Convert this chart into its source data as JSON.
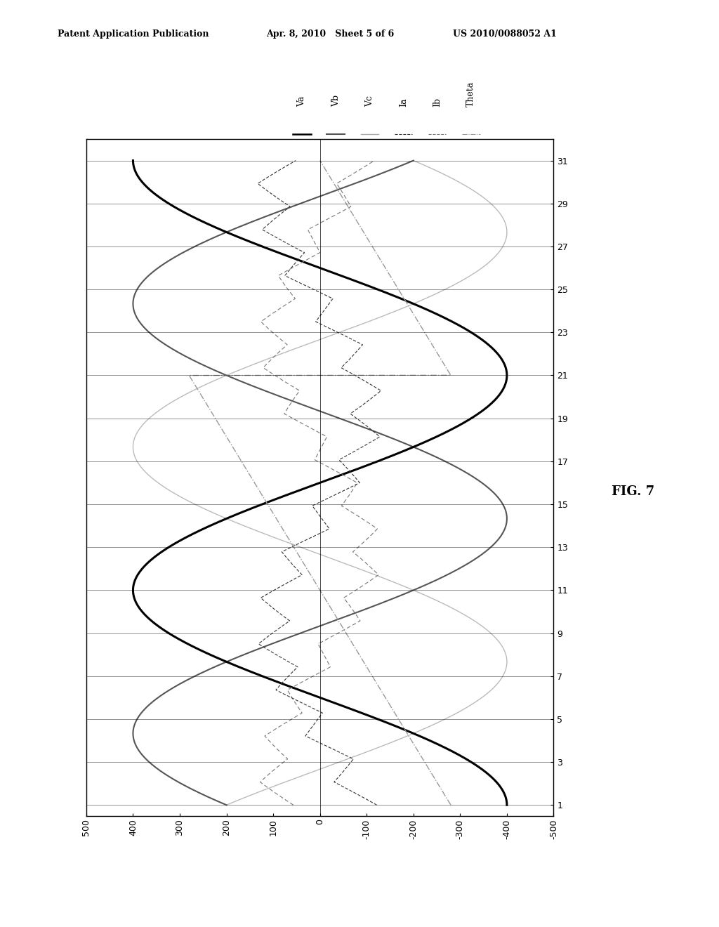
{
  "title_left": "Patent Application Publication",
  "title_mid": "Apr. 8, 2010   Sheet 5 of 6",
  "title_right": "US 2010/0088052 A1",
  "fig_label": "FIG. 7",
  "val_lim": [
    -500,
    500
  ],
  "val_ticks": [
    500,
    400,
    300,
    200,
    100,
    0,
    -100,
    -200,
    -300,
    -400,
    -500
  ],
  "time_lim": [
    0.5,
    32
  ],
  "time_ticks": [
    1,
    3,
    5,
    7,
    9,
    11,
    13,
    15,
    17,
    19,
    21,
    23,
    25,
    27,
    29,
    31
  ],
  "Va_amplitude": 400,
  "Vb_amplitude": 400,
  "Vc_amplitude": 400,
  "Ia_amplitude": 100,
  "Ib_amplitude": 100,
  "background_color": "#ffffff",
  "Va_color": "#000000",
  "Vb_color": "#555555",
  "Vc_color": "#aaaaaa",
  "Ia_color": "#333333",
  "Ib_color": "#777777",
  "Theta_color": "#999999",
  "legend_labels": [
    "Va",
    "Vb",
    "Vc",
    "Ia",
    "Ib",
    "Theta"
  ]
}
